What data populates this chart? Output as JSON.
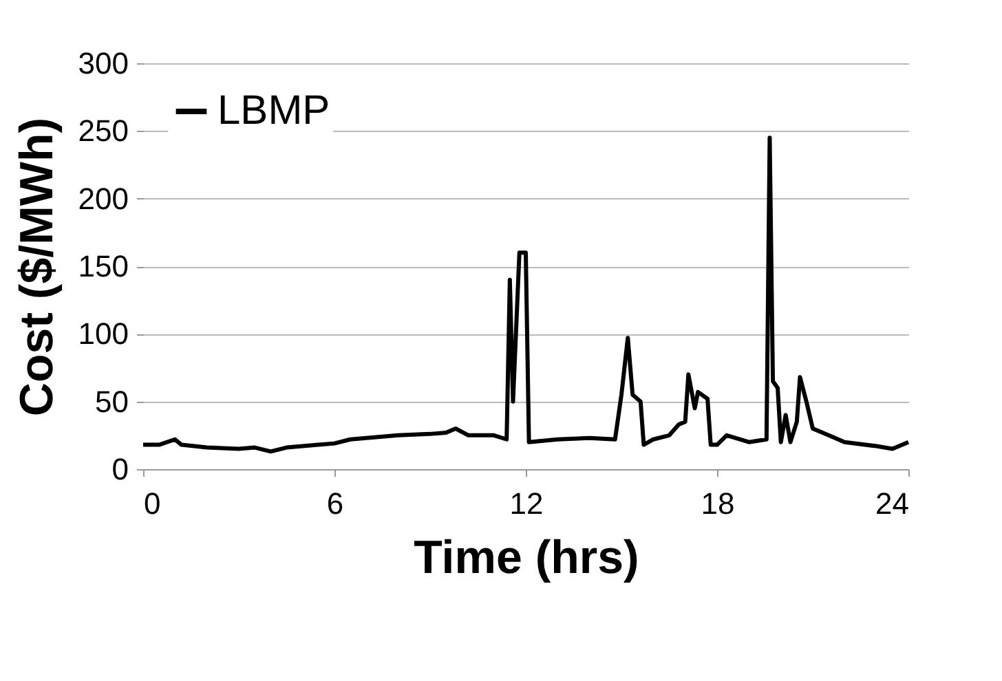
{
  "chart_data": {
    "type": "line",
    "xlabel": "Time (hrs)",
    "ylabel": "Cost ($/MWh)",
    "xlim": [
      0,
      24
    ],
    "xticks": [
      0,
      6,
      12,
      18,
      24
    ],
    "ylim": [
      0,
      300
    ],
    "yticks": [
      0,
      50,
      100,
      150,
      200,
      250,
      300
    ],
    "grid": "y",
    "legend": "top left",
    "series": [
      {
        "name": "LBMP",
        "color": "#000000",
        "x": [
          0,
          0.5,
          1.0,
          1.2,
          2,
          3,
          3.5,
          4,
          4.5,
          5,
          5.5,
          6,
          6.5,
          7,
          8,
          9,
          9.5,
          9.8,
          10.2,
          11,
          11.4,
          11.5,
          11.6,
          11.8,
          12,
          12.1,
          13,
          14,
          14.8,
          15,
          15.2,
          15.35,
          15.6,
          15.7,
          16,
          16.5,
          16.8,
          17,
          17.1,
          17.3,
          17.4,
          17.7,
          17.8,
          18,
          18.3,
          19,
          19.55,
          19.65,
          19.75,
          19.9,
          20.0,
          20.15,
          20.3,
          20.5,
          20.6,
          20.8,
          21,
          21.5,
          22,
          23,
          23.5,
          24
        ],
        "values": [
          18,
          18,
          22,
          18,
          16,
          15,
          16,
          13,
          16,
          17,
          18,
          19,
          22,
          23,
          25,
          26,
          27,
          30,
          25,
          25,
          22,
          140,
          50,
          160,
          160,
          20,
          22,
          23,
          22,
          55,
          97,
          55,
          50,
          18,
          22,
          25,
          33,
          35,
          70,
          45,
          57,
          52,
          18,
          18,
          25,
          20,
          22,
          245,
          65,
          60,
          20,
          40,
          20,
          35,
          68,
          50,
          30,
          25,
          20,
          17,
          15,
          20
        ]
      }
    ]
  }
}
